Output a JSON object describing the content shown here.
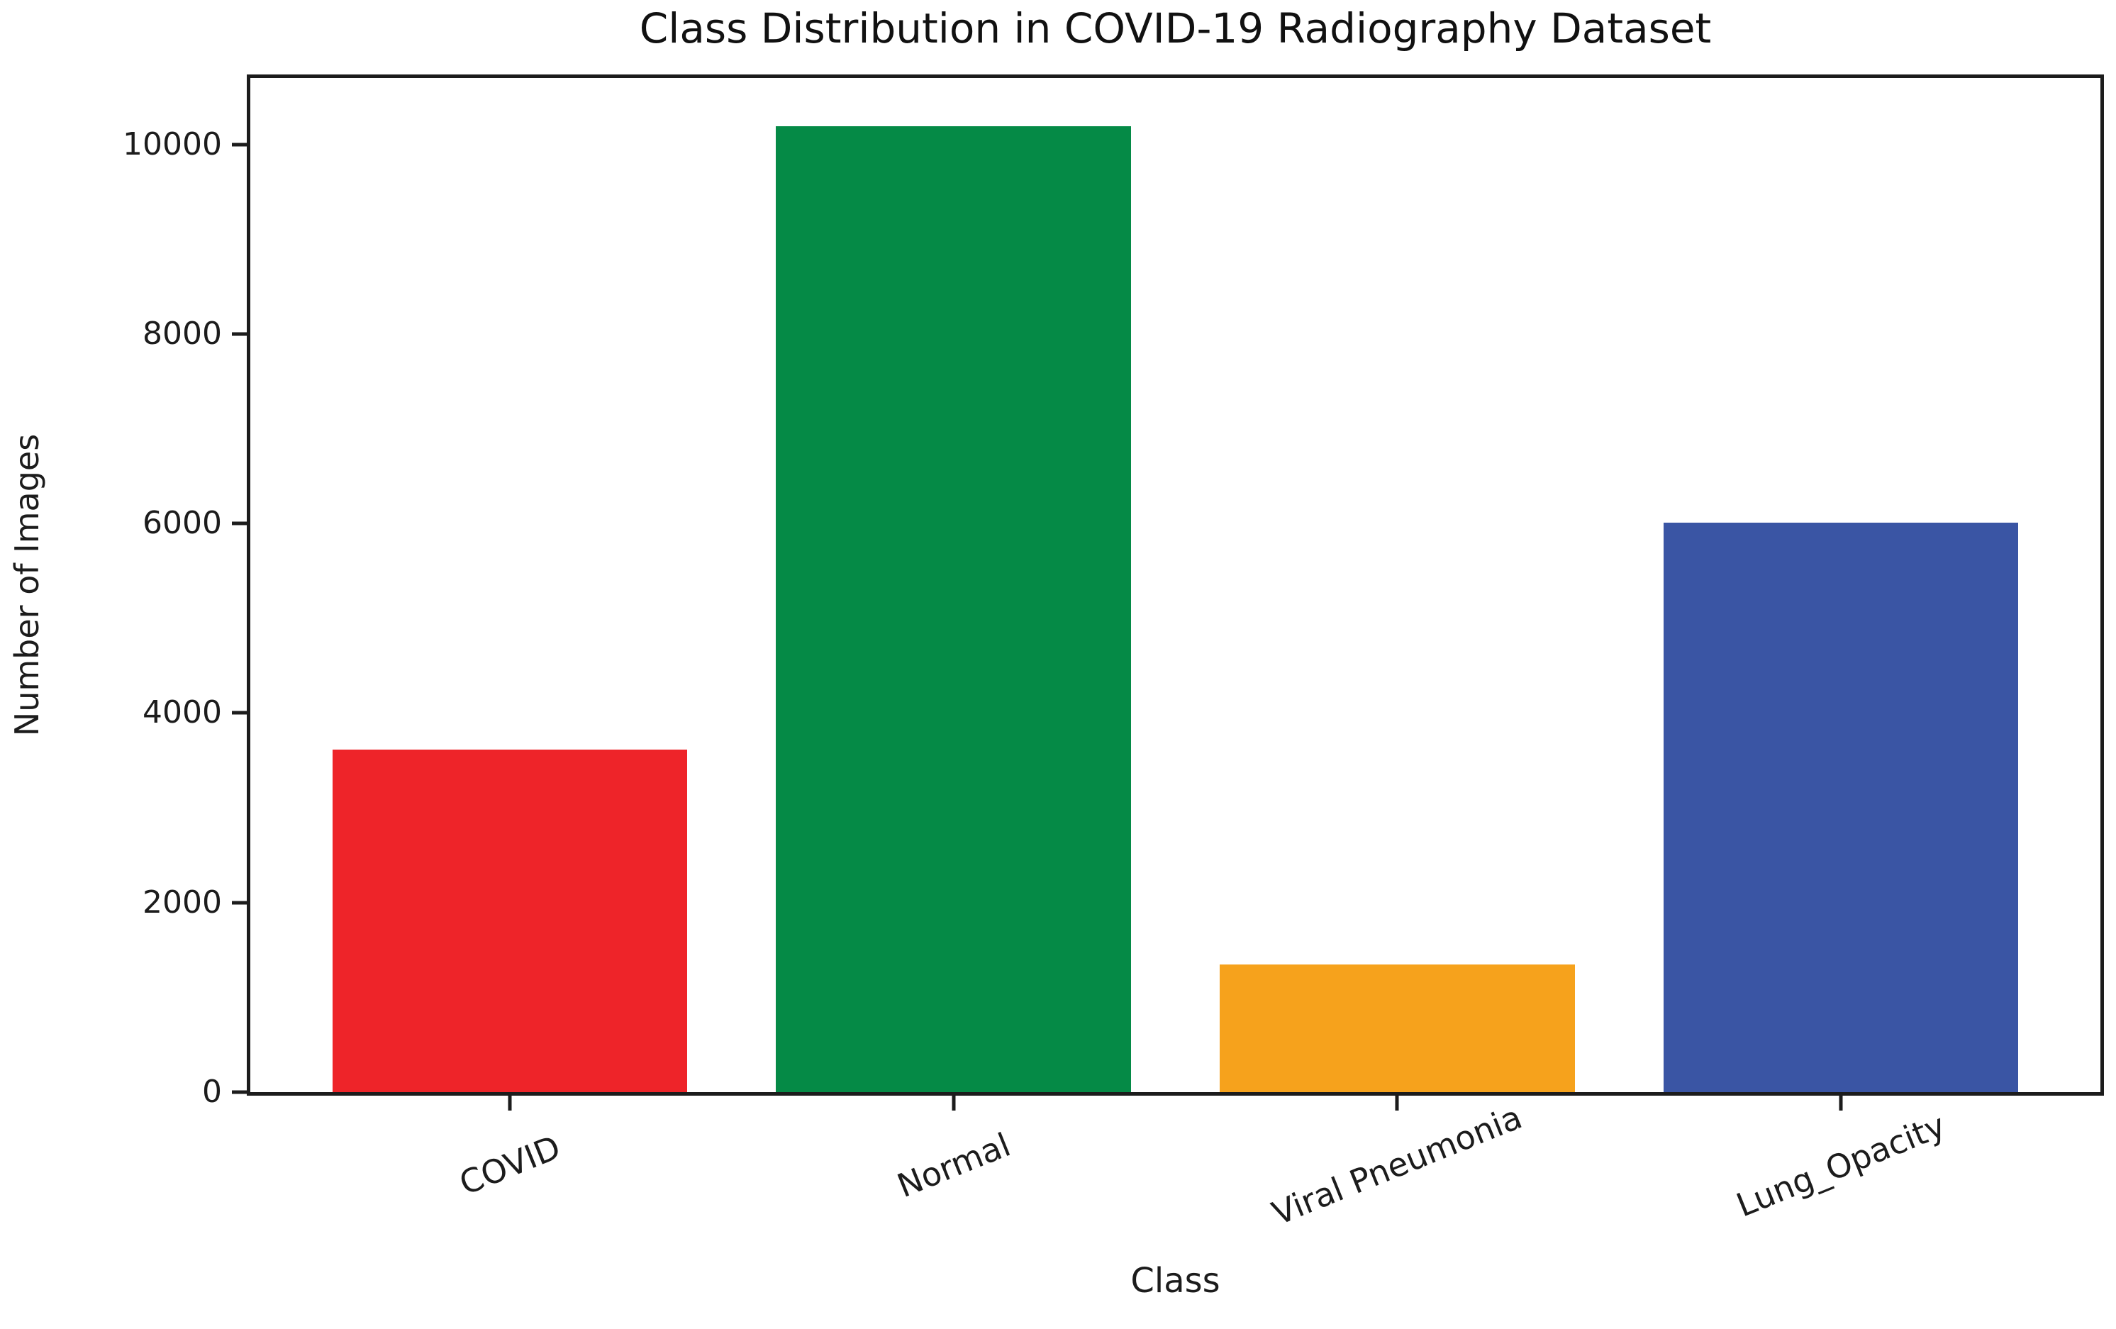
{
  "chart_data": {
    "type": "bar",
    "title": "Class Distribution in COVID-19 Radiography Dataset",
    "xlabel": "Class",
    "ylabel": "Number of Images",
    "categories": [
      "COVID",
      "Normal",
      "Viral Pneumonia",
      "Lung_Opacity"
    ],
    "values": [
      3616,
      10192,
      1345,
      6012
    ],
    "bar_colors": [
      "#ee2429",
      "#058a46",
      "#f6a21c",
      "#3a55a4"
    ],
    "yticks": [
      0,
      2000,
      4000,
      6000,
      8000,
      10000
    ],
    "ylim": [
      0,
      10700
    ],
    "grid": false,
    "legend": null,
    "x_tick_rotation_deg": 22,
    "bar_width_fraction": 0.8,
    "axis_color": "#1c1c1c",
    "background_color": "#ffffff"
  }
}
